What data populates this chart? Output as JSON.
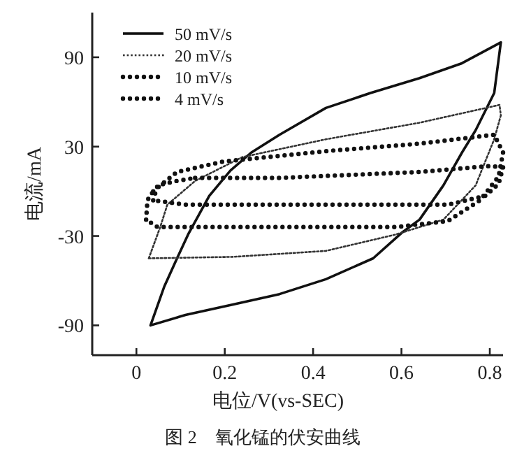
{
  "chart_data": {
    "type": "line",
    "title": "图 2　氧化锰的伏安曲线",
    "xlabel": "电位/V(vs-SEC)",
    "ylabel": "电流/mA",
    "xlim": [
      -0.1,
      0.83
    ],
    "ylim": [
      -110,
      120
    ],
    "xticks": [
      0,
      0.2,
      0.4,
      0.6,
      0.8
    ],
    "yticks": [
      -90,
      -30,
      30,
      90
    ],
    "grid": false,
    "legend": "top left",
    "marker": "none",
    "series": [
      {
        "name": "50 mV/s",
        "color": "#111111",
        "line_style": "solid",
        "x": [
          0.032,
          0.063,
          0.092,
          0.117,
          0.165,
          0.213,
          0.26,
          0.324,
          0.429,
          0.53,
          0.641,
          0.737,
          0.825,
          0.81,
          0.768,
          0.737,
          0.695,
          0.641,
          0.6,
          0.536,
          0.429,
          0.324,
          0.219,
          0.111,
          0.032
        ],
        "values": [
          -90,
          -64,
          -45,
          -29,
          -3,
          14,
          26,
          38,
          56,
          66,
          76,
          86,
          100,
          66,
          41,
          26,
          4,
          -19,
          -28,
          -45,
          -59,
          -69,
          -76,
          -83,
          -90
        ]
      },
      {
        "name": "20 mV/s",
        "color": "#333333",
        "line_style": "dotted",
        "x": [
          0.028,
          0.054,
          0.07,
          0.133,
          0.24,
          0.43,
          0.64,
          0.822,
          0.825,
          0.81,
          0.768,
          0.695,
          0.587,
          0.429,
          0.219,
          0.028
        ],
        "values": [
          -45,
          -24,
          -9,
          7,
          23,
          35,
          46,
          58,
          51,
          35,
          4,
          -19,
          -29,
          -40,
          -44,
          -45
        ]
      },
      {
        "name": "10 mV/s",
        "color": "#111111",
        "line_style": "dotted",
        "x": [
          0.038,
          0.092,
          0.197,
          0.43,
          0.641,
          0.81,
          0.83,
          0.82,
          0.778,
          0.705,
          0.587,
          0.324,
          0.048,
          0.022,
          0.025,
          0.038
        ],
        "values": [
          0,
          13,
          20,
          27,
          32,
          38,
          26,
          10,
          -6,
          -20,
          -24,
          -24,
          -24,
          -19,
          -6,
          0
        ]
      },
      {
        "name": "4 mV/s",
        "color": "#111111",
        "line_style": "dotted",
        "x": [
          0.133,
          0.324,
          0.641,
          0.8,
          0.83,
          0.82,
          0.79,
          0.705,
          0.43,
          0.111,
          0.038,
          0.048,
          0.092,
          0.133
        ],
        "values": [
          9,
          9,
          13,
          17,
          16,
          5,
          -3,
          -9,
          -9,
          -9,
          -6,
          4,
          7,
          9
        ]
      }
    ]
  }
}
